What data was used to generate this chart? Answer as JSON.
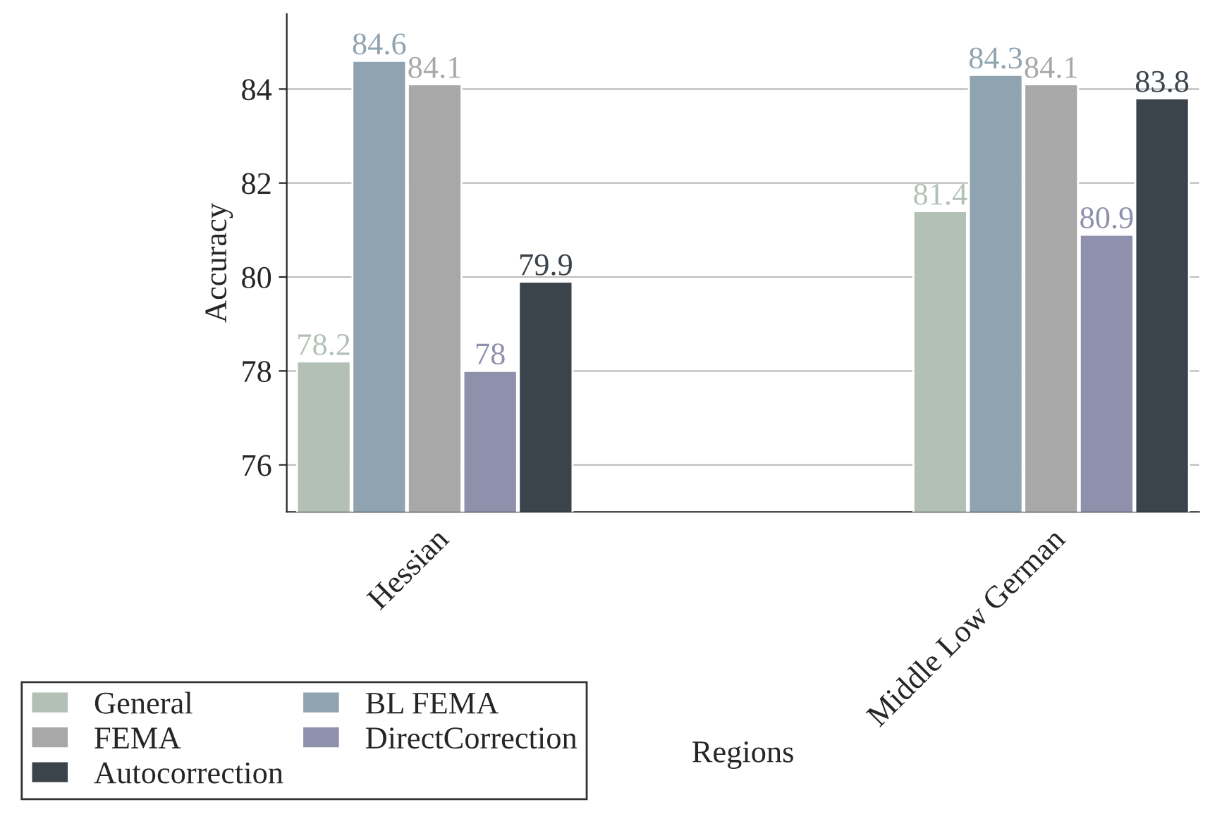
{
  "chart_data": {
    "type": "bar",
    "xlabel": "Regions",
    "ylabel": "Accuracy",
    "categories": [
      "Hessian",
      "Middle Low German"
    ],
    "series": [
      {
        "name": "General",
        "color": "#b3c0b5",
        "values": [
          78.2,
          81.4
        ]
      },
      {
        "name": "BL FEMA",
        "color": "#8fa3b1",
        "values": [
          84.6,
          84.3
        ]
      },
      {
        "name": "FEMA",
        "color": "#a8a8a8",
        "values": [
          84.1,
          84.1
        ]
      },
      {
        "name": "DirectCorrection",
        "color": "#8e90ac",
        "values": [
          78,
          80.9
        ]
      },
      {
        "name": "Autocorrection",
        "color": "#3b434b",
        "values": [
          79.9,
          83.8
        ]
      }
    ],
    "ylim": [
      75,
      85.6
    ],
    "yticks": [
      76,
      78,
      80,
      82,
      84
    ],
    "grid": "y",
    "legend": "bottom left",
    "data_labels": true
  }
}
